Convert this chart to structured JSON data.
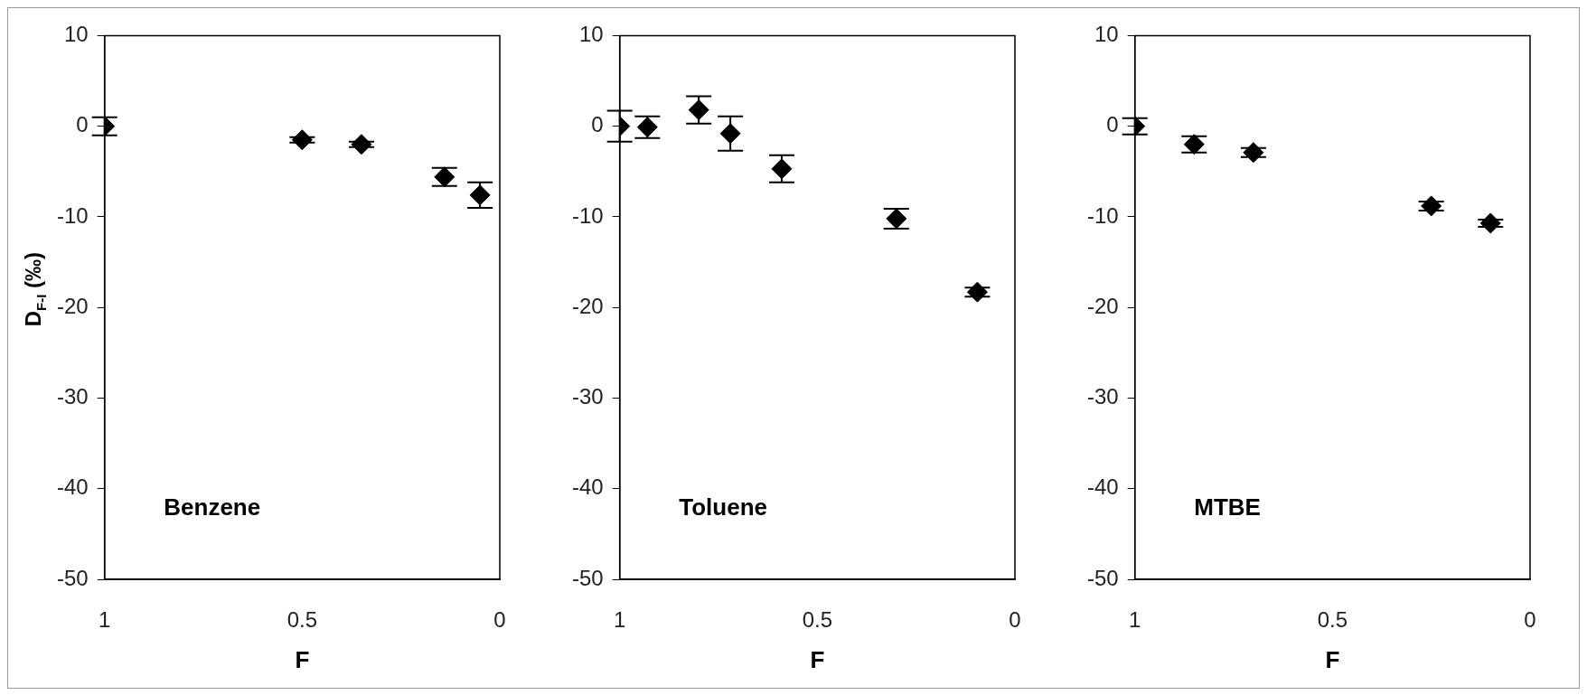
{
  "chart_data": [
    {
      "type": "scatter",
      "ylabel": "D$_{F-I}$ (‰)",
      "xlabel": "F",
      "annotations": [
        "Benzene"
      ],
      "x": [
        1,
        0.5,
        0.35,
        0.14,
        0.05
      ],
      "values": [
        0,
        -1.5,
        -2.0,
        -5.6,
        -7.6
      ],
      "errors": [
        1.0,
        0.3,
        0.3,
        1.0,
        1.4
      ],
      "color": "#000000",
      "marker": "diamond",
      "xlim": [
        1,
        0
      ],
      "xticks": [
        1,
        0.5,
        0
      ],
      "ylim": [
        -50,
        10
      ],
      "yticks": [
        -50,
        -40,
        -30,
        -20,
        -10,
        0,
        10
      ]
    },
    {
      "type": "scatter",
      "xlabel": "F",
      "annotations": [
        "Toluene"
      ],
      "x": [
        1,
        0.93,
        0.8,
        0.72,
        0.59,
        0.3,
        0.095
      ],
      "values": [
        0,
        -0.1,
        1.8,
        -0.8,
        -4.7,
        -10.2,
        -18.3
      ],
      "errors": [
        1.7,
        1.2,
        1.5,
        1.9,
        1.5,
        1.1,
        0.5
      ],
      "color": "#000000",
      "marker": "diamond",
      "xlim": [
        1,
        0
      ],
      "xticks": [
        1,
        0.5,
        0
      ],
      "ylim": [
        -50,
        10
      ],
      "yticks": [
        -50,
        -40,
        -30,
        -20,
        -10,
        0,
        10
      ]
    },
    {
      "type": "scatter",
      "xlabel": "F",
      "annotations": [
        "MTBE"
      ],
      "x": [
        1,
        0.85,
        0.7,
        0.25,
        0.1
      ],
      "values": [
        0,
        -2.0,
        -2.9,
        -8.8,
        -10.7
      ],
      "errors": [
        0.9,
        0.9,
        0.5,
        0.5,
        0.4
      ],
      "color": "#000000",
      "marker": "diamond",
      "xlim": [
        1,
        0
      ],
      "xticks": [
        1,
        0.5,
        0
      ],
      "ylim": [
        -50,
        10
      ],
      "yticks": [
        -50,
        -40,
        -30,
        -20,
        -10,
        0,
        10
      ]
    }
  ]
}
